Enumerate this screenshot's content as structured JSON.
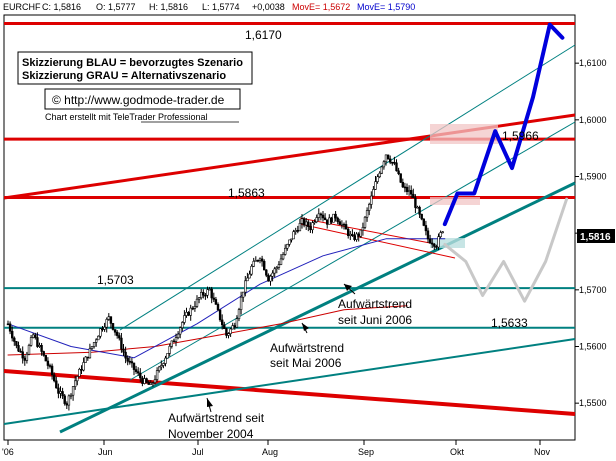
{
  "header": {
    "symbol": "EURCHF",
    "close": "C: 1,5816",
    "open": "O: 1,5777",
    "high": "H: 1,5816",
    "low": "L: 1,5774",
    "change": "+0,0038",
    "mova": "MovE= 1,5672",
    "movb": "MovE= 1,5790",
    "colors": {
      "text": "#000000",
      "mova": "#cc0000",
      "movb": "#0000cc"
    }
  },
  "legend": {
    "blue": "Skizzierung BLAU = bevorzugtes Szenario",
    "gray": "Skizzierung GRAU = Alternativszenario"
  },
  "copyright": "© http://www.godmode-trader.de",
  "credit": "Chart erstellt mit TeleTrader Professional",
  "annotations": {
    "trend_june": [
      "Aufwärtstrend",
      "seit Juni 2006"
    ],
    "trend_may": [
      "Aufwärtstrend",
      "seit Mai 2006"
    ],
    "trend_nov": [
      "Aufwärtstrend seit",
      "November 2004"
    ]
  },
  "last_price_label": "1,5816",
  "chart_data": {
    "type": "candlestick",
    "title": "",
    "xlabel": "",
    "ylabel": "",
    "ylim": [
      1.5435,
      1.6185
    ],
    "y_ticks": [
      "1,5500",
      "1,5600",
      "1,5700",
      "1,5800",
      "1,5900",
      "1,6000",
      "1,6100"
    ],
    "x_ticks": [
      "'06",
      "Jun",
      "Jul",
      "Aug",
      "Sep",
      "Okt",
      "Nov"
    ],
    "horizontal_levels": [
      {
        "value": 1.617,
        "label": "1,6170",
        "color": "#dd0000"
      },
      {
        "value": 1.5966,
        "label": "1,5966",
        "color": "#dd0000"
      },
      {
        "value": 1.5863,
        "label": "1,5863",
        "color": "#dd0000"
      },
      {
        "value": 1.5703,
        "label": "1,5703",
        "color": "#008080"
      },
      {
        "value": 1.5633,
        "label": "1,5633",
        "color": "#008080"
      }
    ],
    "close_path": [
      [
        0,
        1.564
      ],
      [
        4,
        1.56
      ],
      [
        8,
        1.558
      ],
      [
        12,
        1.562
      ],
      [
        16,
        1.559
      ],
      [
        20,
        1.556
      ],
      [
        24,
        1.552
      ],
      [
        28,
        1.55
      ],
      [
        32,
        1.554
      ],
      [
        36,
        1.557
      ],
      [
        40,
        1.56
      ],
      [
        44,
        1.563
      ],
      [
        48,
        1.565
      ],
      [
        52,
        1.562
      ],
      [
        56,
        1.558
      ],
      [
        60,
        1.556
      ],
      [
        64,
        1.554
      ],
      [
        68,
        1.553
      ],
      [
        72,
        1.556
      ],
      [
        76,
        1.559
      ],
      [
        80,
        1.562
      ],
      [
        84,
        1.565
      ],
      [
        88,
        1.567
      ],
      [
        92,
        1.569
      ],
      [
        96,
        1.57
      ],
      [
        100,
        1.566
      ],
      [
        104,
        1.562
      ],
      [
        108,
        1.564
      ],
      [
        112,
        1.57
      ],
      [
        116,
        1.574
      ],
      [
        120,
        1.576
      ],
      [
        124,
        1.572
      ],
      [
        128,
        1.574
      ],
      [
        132,
        1.577
      ],
      [
        136,
        1.58
      ],
      [
        140,
        1.582
      ],
      [
        144,
        1.581
      ],
      [
        148,
        1.584
      ],
      [
        152,
        1.582
      ],
      [
        156,
        1.583
      ],
      [
        160,
        1.581
      ],
      [
        164,
        1.579
      ],
      [
        168,
        1.58
      ],
      [
        172,
        1.585
      ],
      [
        176,
        1.59
      ],
      [
        180,
        1.594
      ],
      [
        184,
        1.592
      ],
      [
        188,
        1.588
      ],
      [
        192,
        1.587
      ],
      [
        196,
        1.583
      ],
      [
        200,
        1.579
      ],
      [
        204,
        1.578
      ],
      [
        208,
        1.5816
      ]
    ],
    "ma_red": [
      [
        0,
        1.5585
      ],
      [
        40,
        1.559
      ],
      [
        70,
        1.56
      ],
      [
        100,
        1.562
      ],
      [
        130,
        1.564
      ],
      [
        160,
        1.5665
      ],
      [
        190,
        1.5672
      ]
    ],
    "ma_blue": [
      [
        0,
        1.564
      ],
      [
        30,
        1.56
      ],
      [
        60,
        1.558
      ],
      [
        90,
        1.564
      ],
      [
        120,
        1.571
      ],
      [
        150,
        1.576
      ],
      [
        180,
        1.579
      ],
      [
        208,
        1.579
      ]
    ],
    "series": [
      {
        "name": "bevorzugtes Szenario",
        "color": "#0000dd",
        "points": [
          [
            208,
            1.5816
          ],
          [
            214,
            1.587
          ],
          [
            222,
            1.587
          ],
          [
            232,
            1.598
          ],
          [
            240,
            1.5915
          ],
          [
            250,
            1.604
          ],
          [
            258,
            1.6168
          ],
          [
            264,
            1.6145
          ]
        ]
      },
      {
        "name": "Alternativszenario",
        "color": "#c8c8c8",
        "points": [
          [
            208,
            1.578
          ],
          [
            218,
            1.575
          ],
          [
            226,
            1.569
          ],
          [
            236,
            1.575
          ],
          [
            246,
            1.568
          ],
          [
            256,
            1.575
          ],
          [
            266,
            1.586
          ]
        ]
      }
    ]
  }
}
